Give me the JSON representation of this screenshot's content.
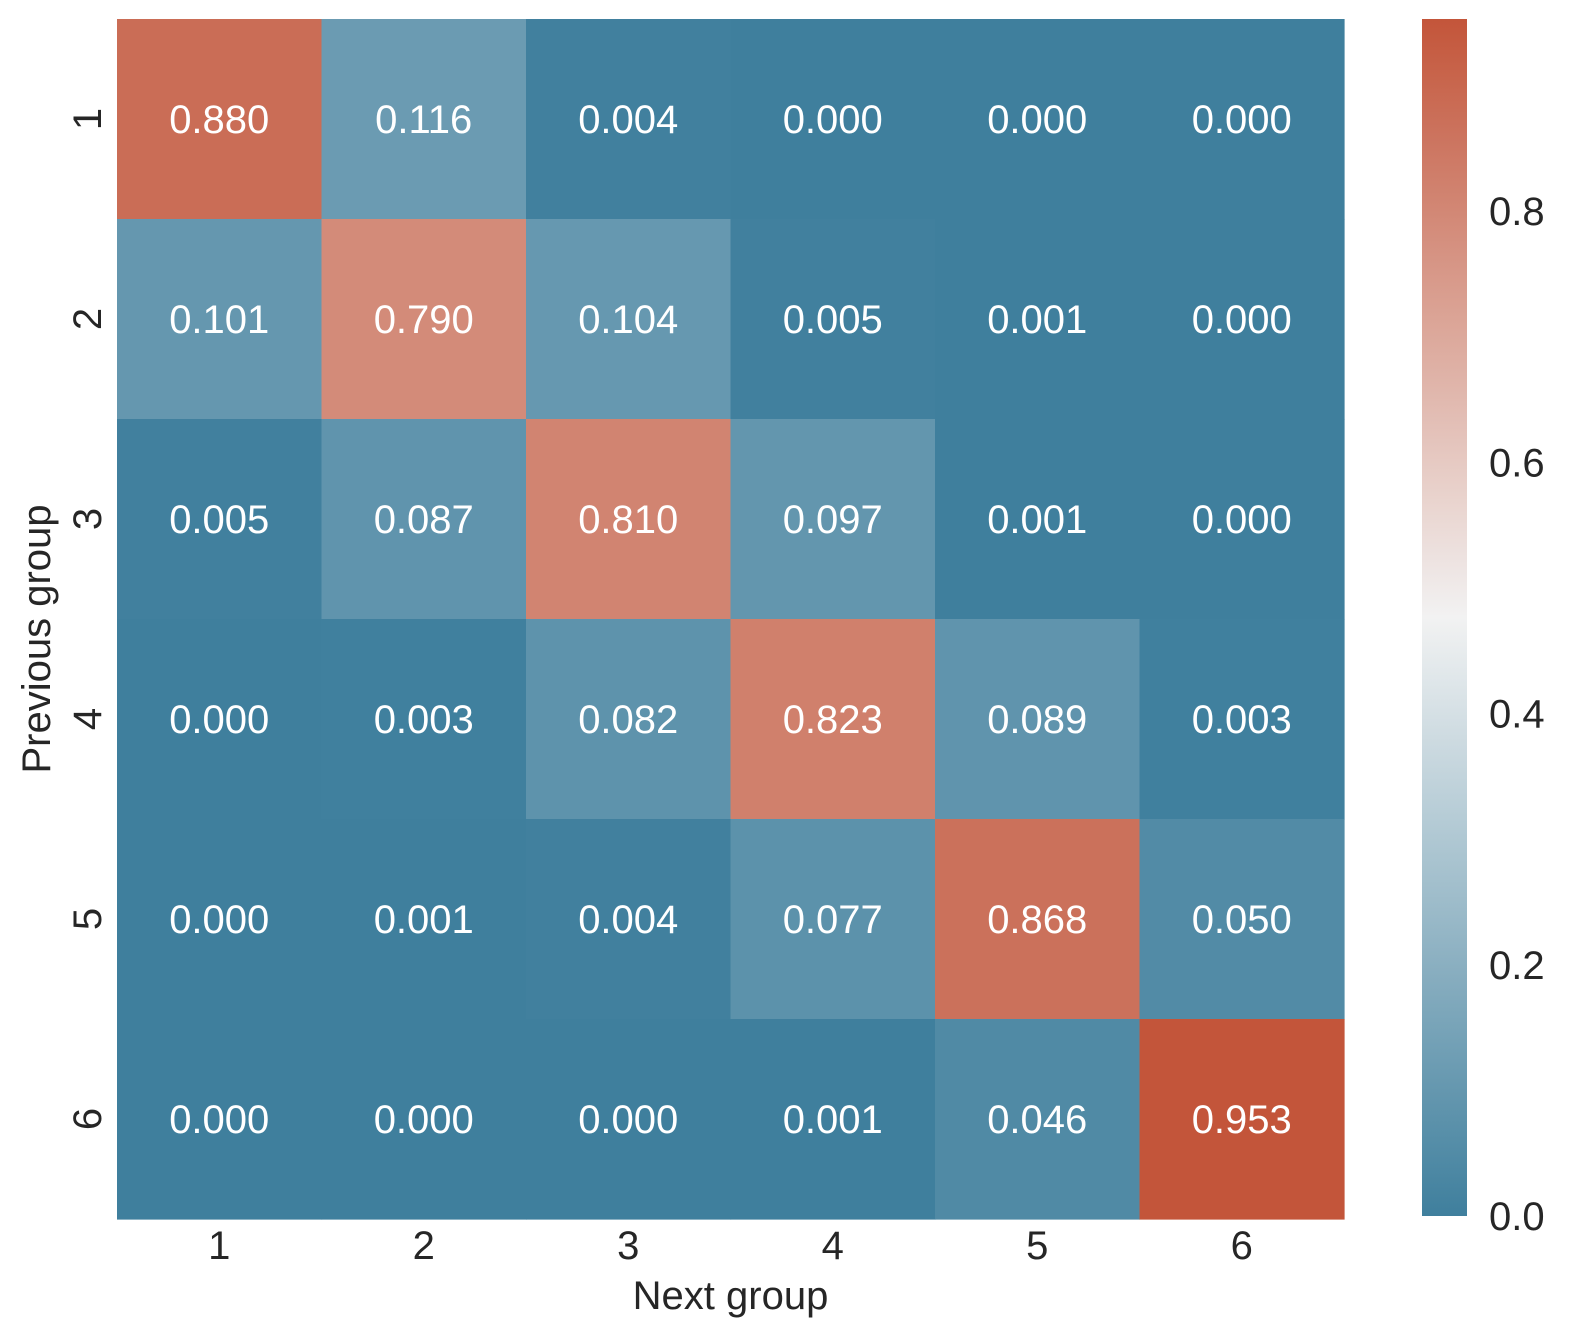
{
  "chart_data": {
    "type": "heatmap",
    "xlabel": "Next group",
    "ylabel": "Previous group",
    "x_categories": [
      "1",
      "2",
      "3",
      "4",
      "5",
      "6"
    ],
    "y_categories": [
      "1",
      "2",
      "3",
      "4",
      "5",
      "6"
    ],
    "values": [
      [
        0.88,
        0.116,
        0.004,
        0.0,
        0.0,
        0.0
      ],
      [
        0.101,
        0.79,
        0.104,
        0.005,
        0.001,
        0.0
      ],
      [
        0.005,
        0.087,
        0.81,
        0.097,
        0.001,
        0.0
      ],
      [
        0.0,
        0.003,
        0.082,
        0.823,
        0.089,
        0.003
      ],
      [
        0.0,
        0.001,
        0.004,
        0.077,
        0.868,
        0.05
      ],
      [
        0.0,
        0.0,
        0.0,
        0.001,
        0.046,
        0.953
      ]
    ],
    "cell_labels": [
      [
        "0.880",
        "0.116",
        "0.004",
        "0.000",
        "0.000",
        "0.000"
      ],
      [
        "0.101",
        "0.790",
        "0.104",
        "0.005",
        "0.001",
        "0.000"
      ],
      [
        "0.005",
        "0.087",
        "0.810",
        "0.097",
        "0.001",
        "0.000"
      ],
      [
        "0.000",
        "0.003",
        "0.082",
        "0.823",
        "0.089",
        "0.003"
      ],
      [
        "0.000",
        "0.001",
        "0.004",
        "0.077",
        "0.868",
        "0.050"
      ],
      [
        "0.000",
        "0.000",
        "0.000",
        "0.001",
        "0.046",
        "0.953"
      ]
    ],
    "colorbar": {
      "range": [
        0.0,
        0.953
      ],
      "ticks": [
        0.0,
        0.2,
        0.4,
        0.6,
        0.8
      ],
      "tick_labels": [
        "0.0",
        "0.2",
        "0.4",
        "0.6",
        "0.8"
      ],
      "colors": {
        "low": "#3f7f9d",
        "mid": "#f2f2f2",
        "high": "#c3553a"
      },
      "placement": "right"
    },
    "grid": false,
    "legend": "none"
  }
}
